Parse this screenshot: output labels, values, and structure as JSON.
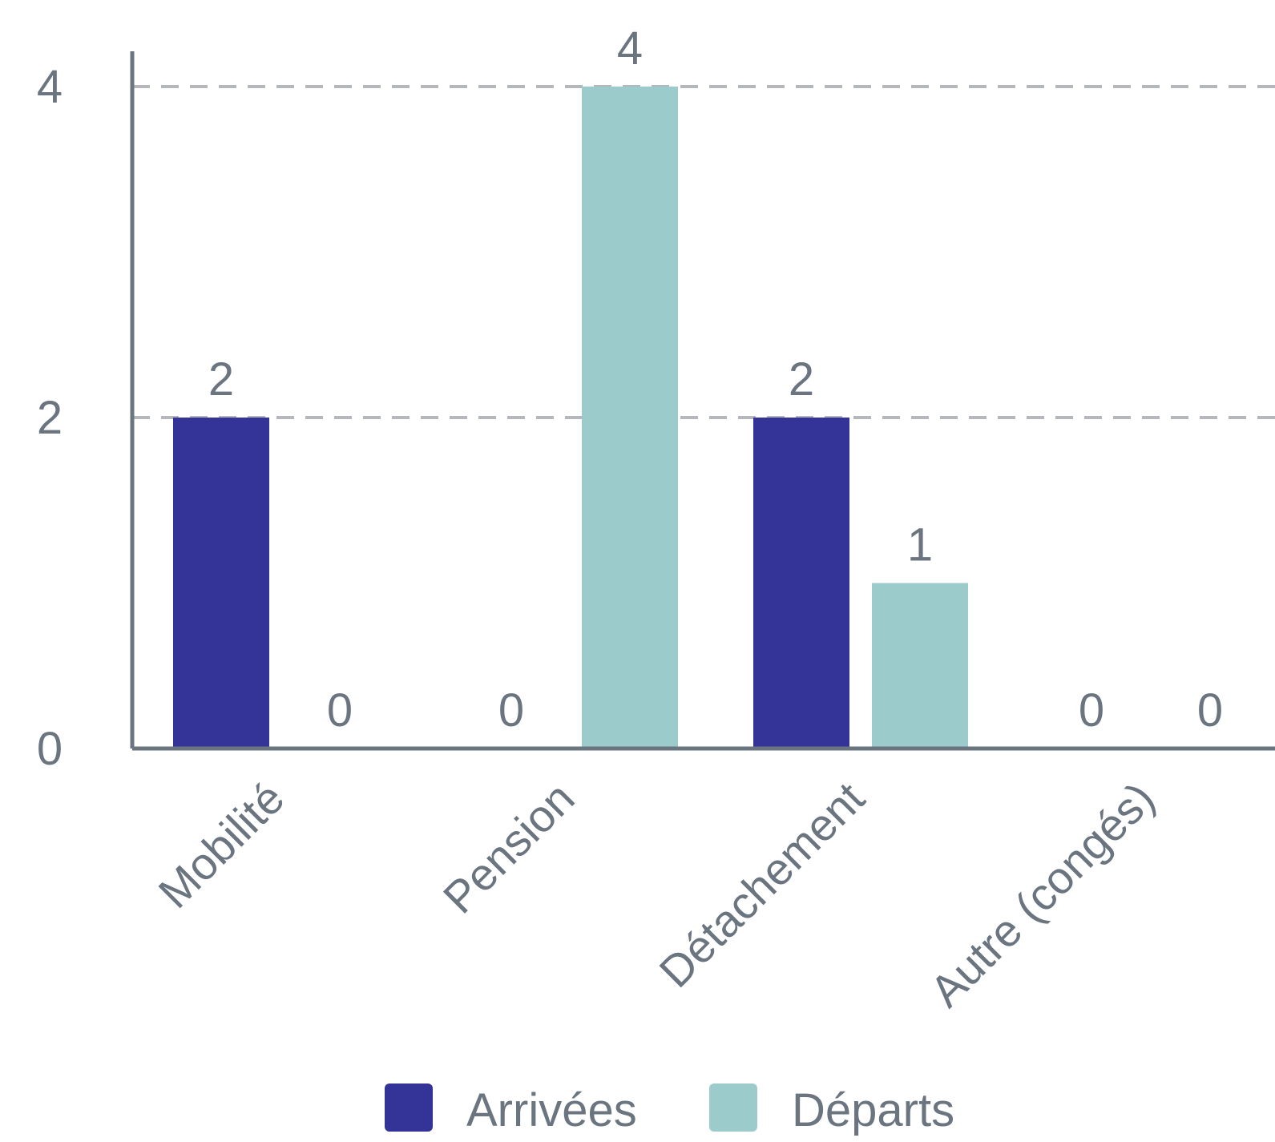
{
  "chart_data": {
    "type": "bar",
    "categories": [
      "Mobilité",
      "Pension",
      "Détachement",
      "Autre (congés)"
    ],
    "series": [
      {
        "name": "Arrivées",
        "values": [
          2,
          0,
          2,
          0
        ],
        "color": "#343397"
      },
      {
        "name": "Départs",
        "values": [
          0,
          4,
          1,
          0
        ],
        "color": "#9CCBCC"
      }
    ],
    "y_ticks": [
      "0",
      "2",
      "4"
    ],
    "ylim": [
      0,
      4
    ],
    "grid": true,
    "legend_position": "bottom"
  },
  "colors": {
    "axis": "#6b7580",
    "text": "#6b7580",
    "grid": "#b4b7bb"
  }
}
